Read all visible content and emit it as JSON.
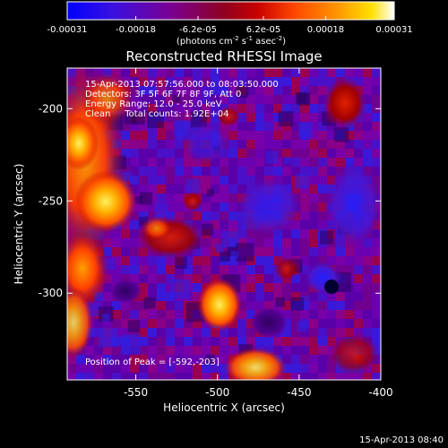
{
  "colorbar": {
    "tick_labels": [
      "-0.00031",
      "-0.00018",
      "-6.2e-05",
      "6.2e-05",
      "0.00018",
      "0.00031"
    ],
    "tick_values": [
      -0.00031,
      -0.00018,
      -6.2e-05,
      6.2e-05,
      0.00018,
      0.00031
    ],
    "range": [
      -0.00031,
      0.00031
    ],
    "unit_label_main": "(photons cm",
    "unit_label_exp1": "-2",
    "unit_label_mid": " s",
    "unit_label_exp2": "-1",
    "unit_label_mid2": " asec",
    "unit_label_exp3": "-2",
    "unit_label_end": ")",
    "colors": [
      "#0000ff",
      "#4b00b4",
      "#800080",
      "#b00000",
      "#ff4000",
      "#ff9000",
      "#ffd800",
      "#ffffff"
    ]
  },
  "plot": {
    "title": "Reconstructed RHESSI Image",
    "info_lines": [
      "15-Apr-2013 07:57:56.000 to 08:03:50.000",
      "Detectors: 3F 5F 6F 7F 8F 9F, Att 0",
      "Energy Range: 12.0 - 25.0 keV",
      "Clean     Total counts: 1.92E+04"
    ],
    "peak_label": "Position of Peak = [-592,-203]",
    "xlabel": "Heliocentric X (arcsec)",
    "ylabel": "Heliocentric Y (arcsec)",
    "xlim": [
      -592,
      -400
    ],
    "ylim": [
      -347,
      -178
    ],
    "x_ticks": [
      {
        "value": -550,
        "label": "-550"
      },
      {
        "value": -500,
        "label": "-500"
      },
      {
        "value": -450,
        "label": "-450"
      },
      {
        "value": -400,
        "label": "-400"
      }
    ],
    "y_ticks": [
      {
        "value": -200,
        "label": "-200"
      },
      {
        "value": -250,
        "label": "-250"
      },
      {
        "value": -300,
        "label": "-300"
      }
    ],
    "peak": {
      "x": -592,
      "y": -203
    }
  },
  "footer": {
    "timestamp": "15-Apr-2013 08:40"
  }
}
